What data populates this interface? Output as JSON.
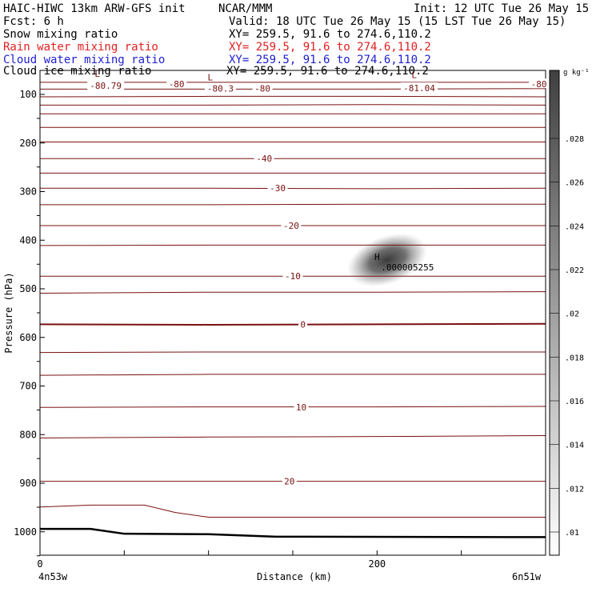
{
  "header": {
    "model": "HAIC-HIWC 13km ARW-GFS init",
    "org": "NCAR/MMM",
    "init": "Init: 12 UTC Tue 26 May 15",
    "fcst": "Fcst:    6 h",
    "valid": "Valid: 18 UTC Tue 26 May 15 (15 LST Tue 26 May 15)"
  },
  "fields": [
    {
      "name": "Snow mixing ratio",
      "xy": "XY= 259.5, 91.6 to 274.6,110.2",
      "color": "#000000"
    },
    {
      "name": "Rain water mixing ratio",
      "xy": "XY= 259.5, 91.6 to 274.6,110.2",
      "color": "#e02020"
    },
    {
      "name": "Cloud water mixing ratio",
      "xy": "XY= 259.5, 91.6 to 274.6,110.2",
      "color": "#2020d0"
    },
    {
      "name": "Cloud ice mixing ratio",
      "xy": "XY= 259.5, 91.6 to 274.6,110.2",
      "color": "#000000"
    }
  ],
  "chart_data": {
    "type": "contour",
    "xlabel": "Distance (km)",
    "ylabel": "Pressure (hPa)",
    "xlim": [
      0,
      300
    ],
    "ylim": [
      1050,
      50
    ],
    "x_ticks": [
      {
        "value": 0,
        "label": "0"
      },
      {
        "value": 200,
        "label": "200"
      }
    ],
    "x_endpoint_labels": {
      "left": "4n53w",
      "right": "6n51w"
    },
    "y_ticks": [
      100,
      200,
      300,
      400,
      500,
      600,
      700,
      800,
      900,
      1000
    ],
    "contour_color": "#7a1010",
    "contour_labels": [
      {
        "text": "-80.79",
        "x": 39,
        "p": 82
      },
      {
        "text": "-80",
        "x": 81,
        "p": 79
      },
      {
        "text": "-80.3",
        "x": 107,
        "p": 88
      },
      {
        "text": "-80",
        "x": 132,
        "p": 88
      },
      {
        "text": "-81.04",
        "x": 225,
        "p": 87
      },
      {
        "text": "-80",
        "x": 296,
        "p": 79
      },
      {
        "text": "-40",
        "x": 133,
        "p": 232
      },
      {
        "text": "-30",
        "x": 141,
        "p": 293
      },
      {
        "text": "-20",
        "x": 149,
        "p": 370
      },
      {
        "text": "-10",
        "x": 150,
        "p": 474
      },
      {
        "text": "0",
        "x": 156,
        "p": 573
      },
      {
        "text": "10",
        "x": 155,
        "p": 744
      },
      {
        "text": "20",
        "x": 148,
        "p": 896
      }
    ],
    "extrema": [
      {
        "type": "L",
        "x": 34,
        "p": 64
      },
      {
        "type": "L",
        "x": 101,
        "p": 71
      },
      {
        "type": "L",
        "x": 222,
        "p": 66
      },
      {
        "type": "H",
        "x": 200,
        "p": 441,
        "value": ".000005255"
      }
    ],
    "colorbar": {
      "unit": "g kg⁻¹",
      "labels": [
        ".028",
        ".026",
        ".024",
        ".022",
        ".02",
        ".018",
        ".016",
        ".014",
        ".012",
        ".01"
      ]
    }
  }
}
